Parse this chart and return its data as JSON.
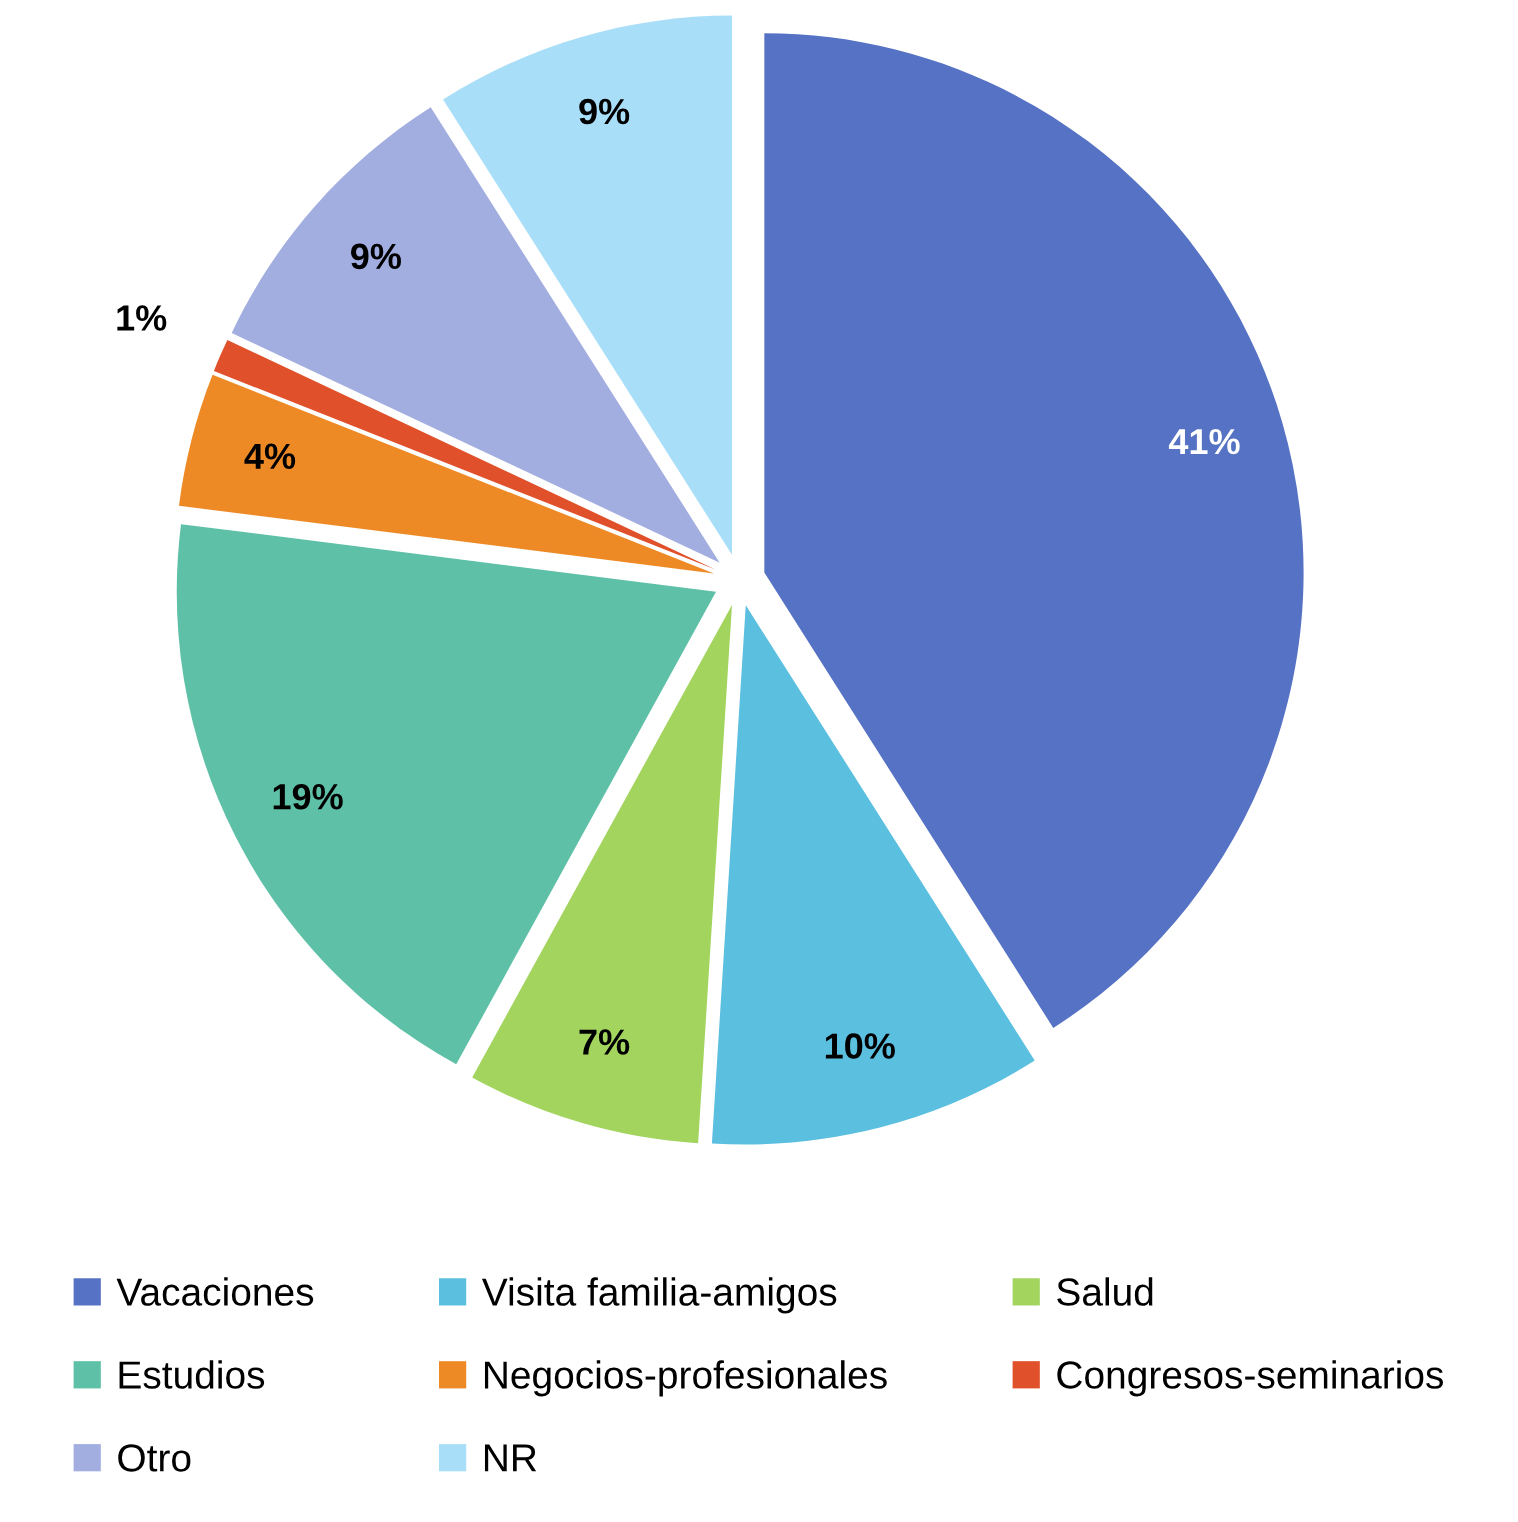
{
  "chart_data": {
    "type": "pie",
    "categories": [
      "Vacaciones",
      "Visita familia-amigos",
      "Salud",
      "Estudios",
      "Negocios-profesionales",
      "Congresos-seminarios",
      "Otro",
      "NR"
    ],
    "values": [
      41,
      10,
      7,
      19,
      4,
      1,
      9,
      9
    ],
    "value_labels": [
      "41%",
      "10%",
      "7%",
      "19%",
      "4%",
      "1%",
      "9%",
      "9%"
    ],
    "colors": [
      "#5672c4",
      "#5bbfe0",
      "#a2d45e",
      "#5ec0a6",
      "#ee8a26",
      "#e0502a",
      "#a3aee0",
      "#a8def8"
    ],
    "legend": "bottom"
  }
}
